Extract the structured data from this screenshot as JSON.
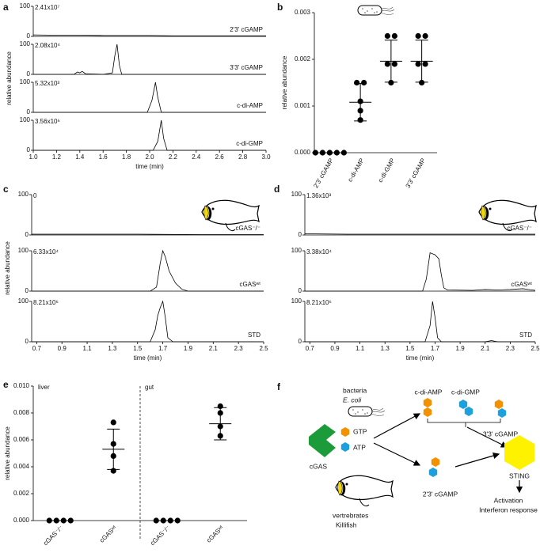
{
  "chart_data": [
    {
      "panel": "a",
      "type": "chromatogram",
      "xlabel": "time (min)",
      "ylabel": "relative abundance",
      "xlim": [
        1.0,
        3.0
      ],
      "xticks": [
        {
          "value": 1,
          "label": "1.0"
        },
        1.2,
        1.4,
        1.6,
        1.8,
        {
          "value": 2,
          "label": "2.0"
        },
        2.2,
        2.4,
        2.6,
        2.8,
        {
          "value": 3,
          "label": "3.0"
        }
      ],
      "ylim": [
        0,
        100
      ],
      "yticks": [
        0,
        100
      ],
      "traces": [
        {
          "name": "2'3' cGAMP",
          "intensity": "2.41x10⁷",
          "x": [
            1.0,
            1.2,
            1.4,
            1.6,
            1.8,
            2.0,
            2.2,
            2.4,
            2.6,
            2.8,
            3.0
          ],
          "values": [
            5,
            4,
            4,
            3,
            3,
            3,
            2,
            2,
            2,
            2,
            2
          ]
        },
        {
          "name": "3'3' cGAMP",
          "intensity": "2.08x10⁴",
          "x": [
            1.0,
            1.35,
            1.38,
            1.4,
            1.42,
            1.45,
            1.6,
            1.68,
            1.7,
            1.72,
            1.74,
            1.76,
            1.9,
            3.0
          ],
          "values": [
            0,
            0,
            8,
            5,
            10,
            2,
            0,
            5,
            60,
            100,
            30,
            0,
            0,
            0
          ]
        },
        {
          "name": "c-di-AMP",
          "intensity": "5.32x10³",
          "x": [
            1.0,
            1.98,
            2.02,
            2.05,
            2.07,
            2.1,
            3.0
          ],
          "values": [
            0,
            0,
            40,
            100,
            50,
            0,
            0
          ]
        },
        {
          "name": "c-di-GMP",
          "intensity": "3.56x10⁶",
          "x": [
            1.0,
            2.03,
            2.07,
            2.1,
            2.12,
            2.15,
            3.0
          ],
          "values": [
            0,
            0,
            30,
            100,
            40,
            0,
            0
          ]
        }
      ]
    },
    {
      "panel": "b",
      "type": "dot",
      "ylabel": "relative abundance",
      "categories": [
        "2'3' cGAMP",
        "c-di-AMP",
        "c-di-GMP",
        "3'3' cGAMP"
      ],
      "ylim": [
        0,
        0.003
      ],
      "yticks": [
        {
          "value": 0,
          "label": "0.000"
        },
        {
          "value": 0.001,
          "label": "0.001"
        },
        {
          "value": 0.002,
          "label": "0.002"
        },
        {
          "value": 0.003,
          "label": "0.003"
        }
      ],
      "points": [
        [
          0,
          0,
          0,
          0,
          0
        ],
        [
          0.0015,
          0.0015,
          0.0011,
          0.0009,
          0.0007
        ],
        [
          0.0025,
          0.0025,
          0.0019,
          0.0019,
          0.0015
        ],
        [
          0.0025,
          0.0025,
          0.0019,
          0.0019,
          0.0015
        ]
      ],
      "mean": [
        0,
        0.00108,
        0.00196,
        0.00196
      ],
      "sd": [
        0,
        0.0004,
        0.00045,
        0.00045
      ],
      "color": "#000000"
    },
    {
      "panel": "c",
      "type": "chromatogram",
      "xlabel": "time (min)",
      "ylabel": "relative abundance",
      "xlim": [
        0.66,
        2.5
      ],
      "xticks": [
        0.7,
        0.9,
        1.1,
        1.3,
        1.5,
        1.7,
        1.9,
        2.1,
        2.3,
        2.5
      ],
      "ylim": [
        0,
        100
      ],
      "yticks": [
        0,
        100
      ],
      "traces": [
        {
          "name": "cGAS⁻/⁻",
          "intensity": "0",
          "x": [
            0.66,
            1.0,
            1.5,
            2.0,
            2.5
          ],
          "values": [
            2,
            2,
            2,
            1,
            1
          ]
        },
        {
          "name": "cGASʷᵗ",
          "intensity": "6.33x10⁴",
          "x": [
            0.66,
            1.6,
            1.65,
            1.68,
            1.7,
            1.72,
            1.75,
            1.8,
            1.85,
            1.9,
            2.5
          ],
          "values": [
            0,
            0,
            10,
            70,
            100,
            85,
            50,
            20,
            5,
            0,
            0
          ]
        },
        {
          "name": "STD",
          "intensity": "8.21x10⁶",
          "x": [
            0.66,
            1.6,
            1.64,
            1.66,
            1.68,
            1.7,
            1.72,
            1.74,
            1.78,
            2.5
          ],
          "values": [
            0,
            0,
            30,
            65,
            85,
            100,
            60,
            10,
            0,
            0
          ]
        }
      ]
    },
    {
      "panel": "d",
      "type": "chromatogram",
      "xlabel": "time (min)",
      "xlim": [
        0.66,
        2.5
      ],
      "xticks": [
        0.7,
        0.9,
        1.1,
        1.3,
        1.5,
        1.7,
        1.9,
        2.1,
        2.3,
        2.5
      ],
      "ylim": [
        0,
        100
      ],
      "yticks": [
        0,
        100
      ],
      "traces": [
        {
          "name": "cGAS⁻/⁻",
          "intensity": "1.36x10³",
          "x": [
            0.66,
            1.0,
            1.5,
            2.0,
            2.5
          ],
          "values": [
            3,
            2,
            2,
            2,
            2
          ]
        },
        {
          "name": "cGASʷᵗ",
          "intensity": "3.38x10⁴",
          "x": [
            0.66,
            1.6,
            1.63,
            1.66,
            1.7,
            1.73,
            1.75,
            1.77,
            1.8,
            2.0,
            2.1,
            2.2,
            2.3,
            2.4,
            2.45,
            2.5
          ],
          "values": [
            0,
            0,
            30,
            95,
            90,
            80,
            40,
            8,
            3,
            2,
            4,
            3,
            4,
            6,
            4,
            2
          ]
        },
        {
          "name": "STD",
          "intensity": "8.21x10⁶",
          "x": [
            0.66,
            1.62,
            1.66,
            1.68,
            1.7,
            1.72,
            1.75,
            2.1,
            2.15,
            2.2,
            2.5
          ],
          "values": [
            0,
            0,
            40,
            100,
            60,
            10,
            0,
            0,
            3,
            0,
            0
          ]
        }
      ]
    },
    {
      "panel": "e",
      "type": "dot",
      "ylabel": "relative abundance",
      "groups": [
        "liver",
        "gut"
      ],
      "categories": [
        "cGAS⁻/⁻",
        "cGASʷᵗ",
        "cGAS⁻/⁻",
        "cGASʷᵗ"
      ],
      "ylim": [
        0,
        0.01
      ],
      "yticks": [
        {
          "value": 0,
          "label": "0.000"
        },
        {
          "value": 0.002,
          "label": "0.002"
        },
        {
          "value": 0.004,
          "label": "0.004"
        },
        {
          "value": 0.006,
          "label": "0.006"
        },
        {
          "value": 0.008,
          "label": "0.008"
        },
        {
          "value": 0.01,
          "label": "0.010"
        }
      ],
      "points": [
        [
          0,
          0,
          0,
          0
        ],
        [
          0.0073,
          0.0057,
          0.0048,
          0.0037
        ],
        [
          0,
          0,
          0,
          0
        ],
        [
          0.0085,
          0.008,
          0.007,
          0.0063
        ]
      ],
      "mean": [
        0,
        0.0053,
        0,
        0.0072
      ],
      "sd": [
        0,
        0.0015,
        0,
        0.0012
      ],
      "color": "#000000"
    }
  ],
  "diagram": {
    "panel": "f",
    "bacteria": "bacteria",
    "species": "E. coli",
    "bacterial_products": [
      "c-di-AMP",
      "c-di-GMP",
      "3'3' cGAMP"
    ],
    "substrates": [
      "GTP",
      "ATP"
    ],
    "enzyme": "cGAS",
    "vertebrates": "vertrebrates",
    "fish": "Killifish",
    "vertebrate_product": "2'3' cGAMP",
    "receptor": "STING",
    "outcome": [
      "Activation",
      "Interferon response"
    ]
  }
}
